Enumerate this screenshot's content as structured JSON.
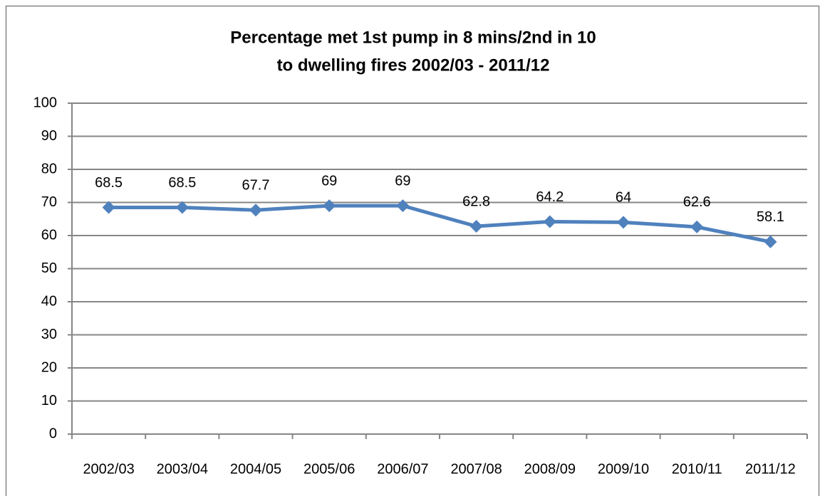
{
  "chart_data": {
    "type": "line",
    "title": [
      "Percentage met 1st pump in 8 mins/2nd in 10",
      "to dwelling fires 2002/03 - 2011/12"
    ],
    "categories": [
      "2002/03",
      "2003/04",
      "2004/05",
      "2005/06",
      "2006/07",
      "2007/08",
      "2008/09",
      "2009/10",
      "2010/11",
      "2011/12"
    ],
    "values": [
      68.5,
      68.5,
      67.7,
      69,
      69,
      62.8,
      64.2,
      64,
      62.6,
      58.1
    ],
    "color": "#4f81bd",
    "ylim": [
      0,
      100
    ],
    "yticks": [
      0,
      10,
      20,
      30,
      40,
      50,
      60,
      70,
      80,
      90,
      100
    ],
    "grid": true
  }
}
